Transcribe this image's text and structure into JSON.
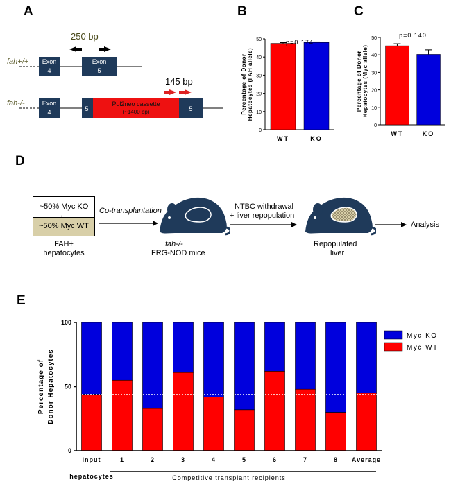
{
  "panels": {
    "a": "A",
    "b": "B",
    "c": "C",
    "d": "D",
    "e": "E"
  },
  "panel_a": {
    "wt_label": "fah+/+",
    "ko_label": "fah-/-",
    "exon4": "Exon",
    "exon4_num": "4",
    "exon5": "Exon",
    "exon5_num": "5",
    "primer1": "250 bp",
    "primer2": "145 bp",
    "cassette_line1": "Pol2neo cassette",
    "cassette_line2": "(~1400 bp)",
    "ko_exon5_left": "5",
    "ko_exon5_right": "5"
  },
  "panel_d": {
    "box_top": "~50% Myc KO",
    "plus": "+",
    "box_bottom": "~50% Myc WT",
    "cells_line1": "FAH+",
    "cells_line2": "hepatocytes",
    "arrow1": "Co-transplantation",
    "mice_line1": "fah-/-",
    "mice_line2": "FRG-NOD mice",
    "arrow2_line1": "NTBC withdrawal",
    "arrow2_line2": "+ liver repopulation",
    "liver_line1": "Repopulated",
    "liver_line2": "liver",
    "analysis": "Analysis"
  },
  "colors": {
    "red": "#ff0000",
    "blue": "#0000dd",
    "navy": "#1f3a5a",
    "tan": "#d8cfa8"
  },
  "chart_data": [
    {
      "id": "B",
      "type": "bar",
      "categories": [
        "WT",
        "KO"
      ],
      "values": [
        47.5,
        48.0
      ],
      "errors": [
        0.4,
        0.3
      ],
      "ylim": [
        0,
        50
      ],
      "yticks": [
        0,
        10,
        20,
        30,
        40,
        50
      ],
      "ylabel": "Percentage of Donor Hepatocytes (FAH allele)",
      "annotation": "p=0.174"
    },
    {
      "id": "C",
      "type": "bar",
      "categories": [
        "WT",
        "KO"
      ],
      "values": [
        45.2,
        40.3
      ],
      "errors": [
        1.2,
        2.6
      ],
      "ylim": [
        0,
        50
      ],
      "yticks": [
        0,
        10,
        20,
        30,
        40,
        50
      ],
      "ylabel": "Percentage of Donor Hepatocytes (Myc allele)",
      "annotation": "p=0.140"
    },
    {
      "id": "E",
      "type": "bar",
      "stacked": true,
      "categories": [
        "Input",
        "1",
        "2",
        "3",
        "4",
        "5",
        "6",
        "7",
        "8",
        "Average"
      ],
      "series": [
        {
          "name": "Myc WT",
          "values": [
            44,
            55,
            33,
            61,
            42,
            32,
            62,
            48,
            30,
            45
          ]
        },
        {
          "name": "Myc KO",
          "values": [
            56,
            45,
            67,
            39,
            58,
            68,
            38,
            52,
            70,
            55
          ]
        }
      ],
      "ylim": [
        0,
        100
      ],
      "yticks": [
        0,
        50,
        100
      ],
      "ylabel": "Percentage of Donor Hepatocytes",
      "reference_line": 44,
      "input_sublabel": "hepatocytes",
      "xlabel": "Competitive transplant recipients",
      "legend": [
        "Myc KO",
        "Myc WT"
      ]
    }
  ]
}
